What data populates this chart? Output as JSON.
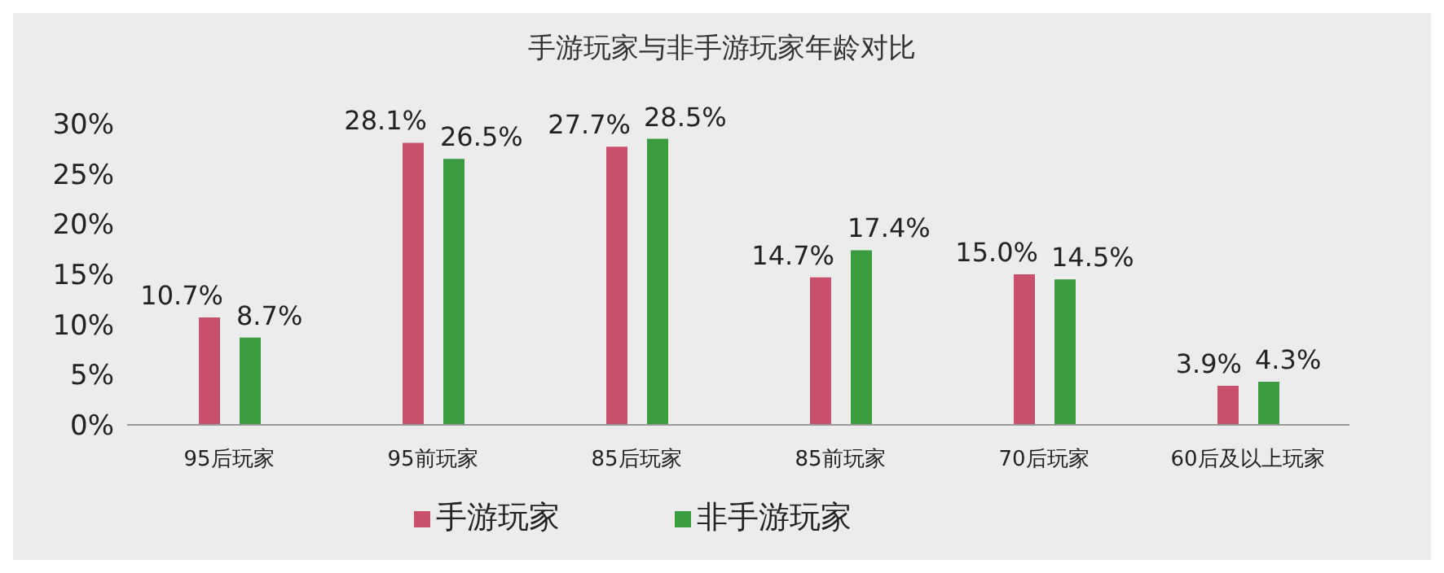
{
  "chart_data": {
    "type": "bar",
    "title": "手游玩家与非手游玩家年龄对比",
    "categories": [
      "95后玩家",
      "95前玩家",
      "85后玩家",
      "85前玩家",
      "70后玩家",
      "60后及以上玩家"
    ],
    "series": [
      {
        "name": "手游玩家",
        "color": "#c9506b",
        "values": [
          10.7,
          28.1,
          27.7,
          14.7,
          15.0,
          3.9
        ],
        "value_labels": [
          "10.7%",
          "28.1%",
          "27.7%",
          "14.7%",
          "15.0%",
          "3.9%"
        ]
      },
      {
        "name": "非手游玩家",
        "color": "#3b9c3f",
        "values": [
          8.7,
          26.5,
          28.5,
          17.4,
          14.5,
          4.3
        ],
        "value_labels": [
          "8.7%",
          "26.5%",
          "28.5%",
          "17.4%",
          "14.5%",
          "4.3%"
        ]
      }
    ],
    "ylim": [
      0,
      30
    ],
    "yticks": [
      {
        "value": 0,
        "label": "0%"
      },
      {
        "value": 5,
        "label": "5%"
      },
      {
        "value": 10,
        "label": "10%"
      },
      {
        "value": 15,
        "label": "15%"
      },
      {
        "value": 20,
        "label": "20%"
      },
      {
        "value": 25,
        "label": "25%"
      },
      {
        "value": 30,
        "label": "30%"
      }
    ],
    "grid": false,
    "legend": "bottom"
  }
}
